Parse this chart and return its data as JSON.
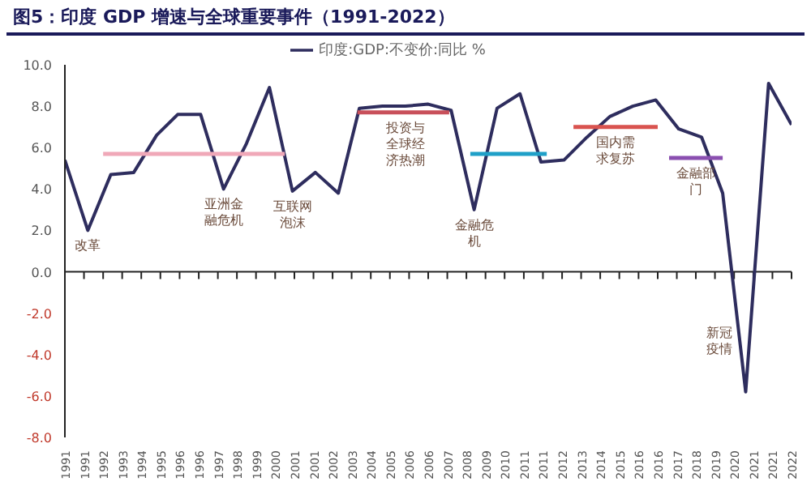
{
  "chart_data": {
    "type": "line",
    "title": "图5：印度 GDP 增速与全球重要事件（1991-2022）",
    "legend": "top",
    "marker": "none",
    "line_style": "solid",
    "ylim": [
      -8,
      10
    ],
    "yticks": [
      {
        "value": 10,
        "label": "10.0"
      },
      {
        "value": 8,
        "label": "8.0"
      },
      {
        "value": 6,
        "label": "6.0"
      },
      {
        "value": 4,
        "label": "4.0"
      },
      {
        "value": 2,
        "label": "2.0"
      },
      {
        "value": 0,
        "label": "0.0"
      },
      {
        "value": -2,
        "label": "-2.0"
      },
      {
        "value": -4,
        "label": "-4.0"
      },
      {
        "value": -6,
        "label": "-6.0"
      },
      {
        "value": -8,
        "label": "-8.0"
      }
    ],
    "xlim": [
      "1991-01",
      "2022-09"
    ],
    "xticks": [
      {
        "value": "1991-01",
        "label": "1991"
      },
      {
        "value": "1991-11",
        "label": "1991"
      },
      {
        "value": "1992-09",
        "label": "1992"
      },
      {
        "value": "1993-07",
        "label": "1993"
      },
      {
        "value": "1994-05",
        "label": "1994"
      },
      {
        "value": "1995-03",
        "label": "1995"
      },
      {
        "value": "1996-01",
        "label": "1996"
      },
      {
        "value": "1996-11",
        "label": "1996"
      },
      {
        "value": "1997-09",
        "label": "1997"
      },
      {
        "value": "1998-07",
        "label": "1998"
      },
      {
        "value": "1999-05",
        "label": "1999"
      },
      {
        "value": "2000-03",
        "label": "2000"
      },
      {
        "value": "2001-01",
        "label": "2001"
      },
      {
        "value": "2001-11",
        "label": "2001"
      },
      {
        "value": "2002-09",
        "label": "2002"
      },
      {
        "value": "2003-07",
        "label": "2003"
      },
      {
        "value": "2004-05",
        "label": "2004"
      },
      {
        "value": "2005-03",
        "label": "2005"
      },
      {
        "value": "2006-01",
        "label": "2006"
      },
      {
        "value": "2006-11",
        "label": "2006"
      },
      {
        "value": "2007-09",
        "label": "2007"
      },
      {
        "value": "2008-07",
        "label": "2008"
      },
      {
        "value": "2009-05",
        "label": "2009"
      },
      {
        "value": "2010-03",
        "label": "2010"
      },
      {
        "value": "2011-01",
        "label": "2011"
      },
      {
        "value": "2011-11",
        "label": "2011"
      },
      {
        "value": "2012-09",
        "label": "2012"
      },
      {
        "value": "2013-07",
        "label": "2013"
      },
      {
        "value": "2014-05",
        "label": "2014"
      },
      {
        "value": "2015-03",
        "label": "2015"
      },
      {
        "value": "2016-01",
        "label": "2016"
      },
      {
        "value": "2016-11",
        "label": "2016"
      },
      {
        "value": "2017-09",
        "label": "2017"
      },
      {
        "value": "2018-07",
        "label": "2018"
      },
      {
        "value": "2019-05",
        "label": "2019"
      },
      {
        "value": "2020-03",
        "label": "2020"
      },
      {
        "value": "2021-01",
        "label": "2021"
      },
      {
        "value": "2021-11",
        "label": "2021"
      },
      {
        "value": "2022-09",
        "label": "2022"
      }
    ],
    "ref_lines": [
      {
        "axis": "y",
        "value": 0,
        "color": "#222222"
      }
    ],
    "series": [
      {
        "name": "印度:GDP:不变价:同比 %",
        "color": "#2e2d5e",
        "x": [
          "1991-01",
          "1992-01",
          "1993-01",
          "1994-01",
          "1995-01",
          "1995-12",
          "1996-12",
          "1997-12",
          "1998-12",
          "1999-12",
          "2000-12",
          "2001-12",
          "2002-12",
          "2003-11",
          "2004-11",
          "2005-11",
          "2006-11",
          "2007-11",
          "2008-11",
          "2009-11",
          "2010-11",
          "2011-10",
          "2012-10",
          "2013-10",
          "2014-10",
          "2015-10",
          "2016-10",
          "2017-10",
          "2018-10",
          "2019-09",
          "2020-09",
          "2021-09",
          "2022-09"
        ],
        "values": [
          5.4,
          2.0,
          4.7,
          4.8,
          6.6,
          7.6,
          7.6,
          4.0,
          6.2,
          8.9,
          3.9,
          4.8,
          3.8,
          7.9,
          8.0,
          8.0,
          8.1,
          7.8,
          3.0,
          7.9,
          8.6,
          5.3,
          5.4,
          6.5,
          7.5,
          8.0,
          8.3,
          6.9,
          6.5,
          3.8,
          -5.8,
          9.1,
          7.1
        ]
      },
      {
        "type": "line",
        "color": "#f0a8b8",
        "x": [
          "1992-09",
          "2000-08"
        ],
        "values": [
          5.7,
          5.7
        ]
      },
      {
        "type": "line",
        "color": "#c8505a",
        "x": [
          "2003-10",
          "2007-10"
        ],
        "values": [
          7.7,
          7.7
        ]
      },
      {
        "type": "line",
        "color": "#1fa0c8",
        "x": [
          "2008-09",
          "2012-01"
        ],
        "values": [
          5.7,
          5.7
        ]
      },
      {
        "type": "line",
        "color": "#d9534f",
        "x": [
          "2013-03",
          "2016-11"
        ],
        "values": [
          7.0,
          7.0
        ]
      },
      {
        "type": "line",
        "color": "#8a4fb0",
        "x": [
          "2017-05",
          "2019-09"
        ],
        "values": [
          5.5,
          5.5
        ]
      }
    ],
    "annotations": [
      {
        "text": "改革",
        "x": "1992-01",
        "y": 2.0
      },
      {
        "text": "亚洲金融危机",
        "x": "1997-12",
        "y": 4.0
      },
      {
        "text": "互联网泡沫",
        "x": "2000-12",
        "y": 3.9
      },
      {
        "text": "投资与全球经济热潮",
        "x": "2005-11",
        "y": 7.7
      },
      {
        "text": "金融危机",
        "x": "2008-11",
        "y": 3.0
      },
      {
        "text": "国内需求复苏",
        "x": "2015-01",
        "y": 7.0
      },
      {
        "text": "金融部门",
        "x": "2018-07",
        "y": 5.5
      },
      {
        "text": "新冠疫情",
        "x": "2020-09",
        "y": -5.8
      }
    ]
  }
}
